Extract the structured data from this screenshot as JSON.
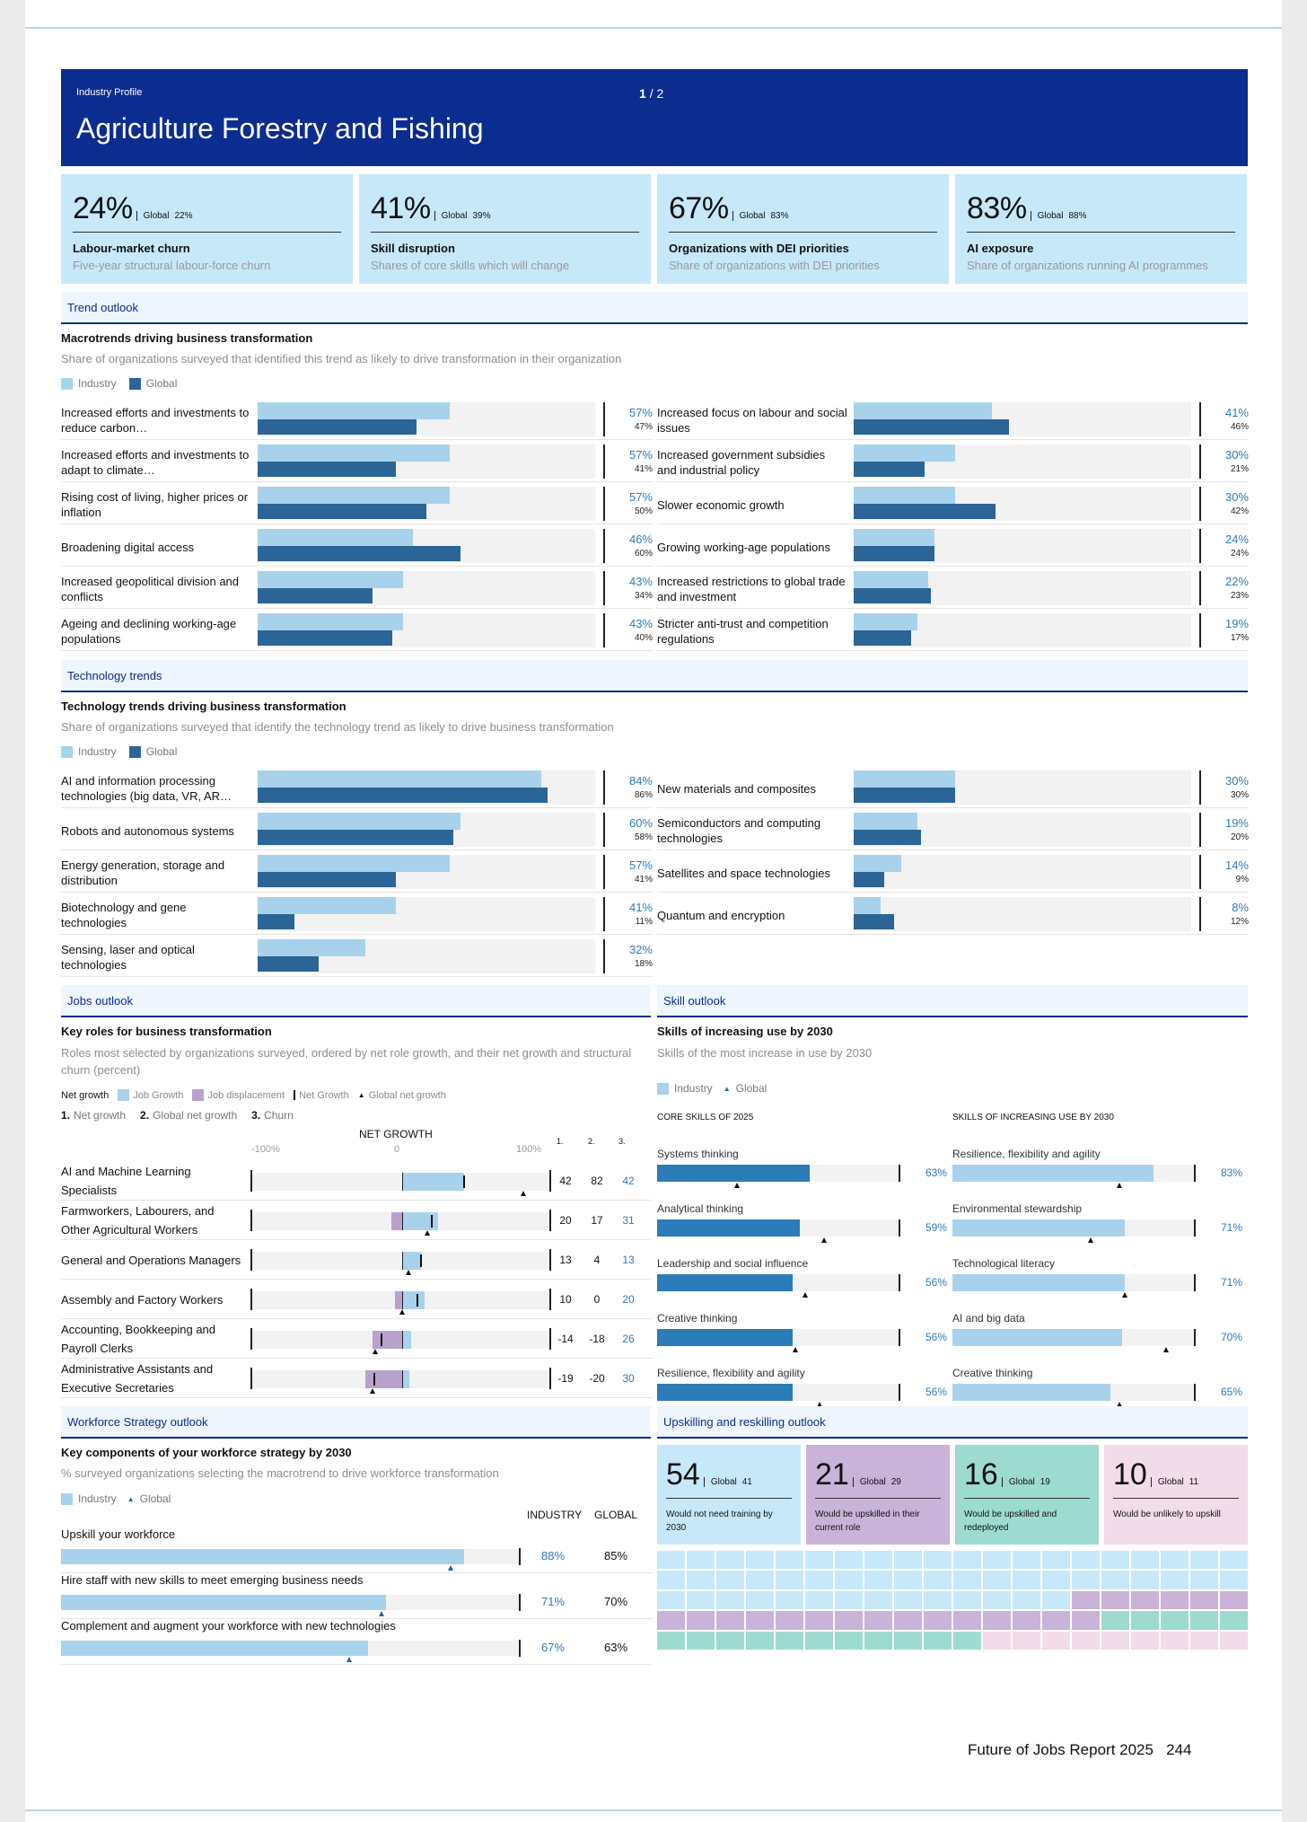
{
  "header": {
    "label": "Industry Profile",
    "page_current": "1",
    "page_sep": "/",
    "page_total": "2",
    "title": "Agriculture Forestry and Fishing"
  },
  "stats": [
    {
      "value": "24%",
      "global_label": "Global",
      "global_value": "22%",
      "title": "Labour-market churn",
      "subtitle": "Five-year structural labour-force churn"
    },
    {
      "value": "41%",
      "global_label": "Global",
      "global_value": "39%",
      "title": "Skill disruption",
      "subtitle": "Shares of core skills which will change"
    },
    {
      "value": "67%",
      "global_label": "Global",
      "global_value": "83%",
      "title": "Organizations with DEI priorities",
      "subtitle": "Share of organizations with DEI priorities"
    },
    {
      "value": "83%",
      "global_label": "Global",
      "global_value": "88%",
      "title": "AI exposure",
      "subtitle": "Share of organizations running AI programmes"
    }
  ],
  "trend": {
    "section": "Trend outlook",
    "title": "Macrotrends driving business transformation",
    "subtitle": "Share of organizations surveyed that identified this trend as likely to drive transformation in their organization",
    "legend_industry": "Industry",
    "legend_global": "Global",
    "left": [
      {
        "name": "Increased efforts and investments to reduce carbon…",
        "industry": 57,
        "global": 47,
        "i_label": "57%",
        "g_label": "47%"
      },
      {
        "name": "Increased efforts and investments to adapt to climate…",
        "industry": 57,
        "global": 41,
        "i_label": "57%",
        "g_label": "41%"
      },
      {
        "name": "Rising cost of living, higher prices or inflation",
        "industry": 57,
        "global": 50,
        "i_label": "57%",
        "g_label": "50%"
      },
      {
        "name": "Broadening digital access",
        "industry": 46,
        "global": 60,
        "i_label": "46%",
        "g_label": "60%"
      },
      {
        "name": "Increased geopolitical division and conflicts",
        "industry": 43,
        "global": 34,
        "i_label": "43%",
        "g_label": "34%"
      },
      {
        "name": "Ageing and declining working-age populations",
        "industry": 43,
        "global": 40,
        "i_label": "43%",
        "g_label": "40%"
      }
    ],
    "right": [
      {
        "name": "Increased focus on labour and social issues",
        "industry": 41,
        "global": 46,
        "i_label": "41%",
        "g_label": "46%"
      },
      {
        "name": "Increased government subsidies and industrial policy",
        "industry": 30,
        "global": 21,
        "i_label": "30%",
        "g_label": "21%"
      },
      {
        "name": "Slower economic growth",
        "industry": 30,
        "global": 42,
        "i_label": "30%",
        "g_label": "42%"
      },
      {
        "name": "Growing working-age populations",
        "industry": 24,
        "global": 24,
        "i_label": "24%",
        "g_label": "24%"
      },
      {
        "name": "Increased restrictions to global trade and investment",
        "industry": 22,
        "global": 23,
        "i_label": "22%",
        "g_label": "23%"
      },
      {
        "name": "Stricter anti-trust and competition regulations",
        "industry": 19,
        "global": 17,
        "i_label": "19%",
        "g_label": "17%"
      }
    ]
  },
  "tech": {
    "section": "Technology trends",
    "title": "Technology trends driving business transformation",
    "subtitle": "Share of organizations surveyed that identify the technology trend as likely to drive business transformation",
    "legend_industry": "Industry",
    "legend_global": "Global",
    "left": [
      {
        "name": "AI and information processing technologies (big data, VR, AR…",
        "industry": 84,
        "global": 86,
        "i_label": "84%",
        "g_label": "86%"
      },
      {
        "name": "Robots and autonomous systems",
        "industry": 60,
        "global": 58,
        "i_label": "60%",
        "g_label": "58%"
      },
      {
        "name": "Energy generation, storage and distribution",
        "industry": 57,
        "global": 41,
        "i_label": "57%",
        "g_label": "41%"
      },
      {
        "name": "Biotechnology and gene technologies",
        "industry": 41,
        "global": 11,
        "i_label": "41%",
        "g_label": "11%"
      },
      {
        "name": "Sensing, laser and optical technologies",
        "industry": 32,
        "global": 18,
        "i_label": "32%",
        "g_label": "18%"
      }
    ],
    "right": [
      {
        "name": "New materials and composites",
        "industry": 30,
        "global": 30,
        "i_label": "30%",
        "g_label": "30%"
      },
      {
        "name": "Semiconductors and computing technologies",
        "industry": 19,
        "global": 20,
        "i_label": "19%",
        "g_label": "20%"
      },
      {
        "name": "Satellites and space technologies",
        "industry": 14,
        "global": 9,
        "i_label": "14%",
        "g_label": "9%"
      },
      {
        "name": "Quantum and encryption",
        "industry": 8,
        "global": 12,
        "i_label": "8%",
        "g_label": "12%"
      }
    ]
  },
  "jobs": {
    "section": "Jobs outlook",
    "title": "Key roles for business transformation",
    "subtitle": "Roles most selected by organizations surveyed, ordered by net role growth, and their net growth and structural churn (percent)",
    "legend_net": "Net growth",
    "legend_growth": "Job Growth",
    "legend_displacement": "Job displacement",
    "legend_netgrowth": "Net Growth",
    "legend_global": "Global net growth",
    "col1": "1.",
    "col1_label": "Net growth",
    "col2": "2.",
    "col2_label": "Global net growth",
    "col3": "3.",
    "col3_label": "Churn",
    "axis_title": "NET GROWTH",
    "axis_min": "-100%",
    "axis_mid": "0",
    "axis_max": "100%",
    "roles": [
      {
        "name": "AI and Machine Learning Specialists",
        "growth": 42,
        "displacement": 0,
        "net": 42,
        "global": 82,
        "churn": 42,
        "n": "42",
        "g": "82",
        "c": "42"
      },
      {
        "name": "Farmworkers, Labourers, and Other Agricultural Workers",
        "growth": 24,
        "displacement": -7,
        "net": 20,
        "global": 17,
        "churn": 31,
        "n": "20",
        "g": "17",
        "c": "31"
      },
      {
        "name": "General and Operations Managers",
        "growth": 13,
        "displacement": 0,
        "net": 13,
        "global": 4,
        "churn": 13,
        "n": "13",
        "g": "4",
        "c": "13"
      },
      {
        "name": "Assembly and Factory Workers",
        "growth": 15,
        "displacement": -5,
        "net": 10,
        "global": 0,
        "churn": 20,
        "n": "10",
        "g": "0",
        "c": "20"
      },
      {
        "name": "Accounting, Bookkeeping and Payroll Clerks",
        "growth": 6,
        "displacement": -20,
        "net": -14,
        "global": -18,
        "churn": 26,
        "n": "-14",
        "g": "-18",
        "c": "26"
      },
      {
        "name": "Administrative Assistants and Executive Secretaries",
        "growth": 5,
        "displacement": -25,
        "net": -19,
        "global": -20,
        "churn": 30,
        "n": "-19",
        "g": "-20",
        "c": "30"
      }
    ]
  },
  "skills": {
    "section": "Skill outlook",
    "title": "Skills of increasing use by 2030",
    "subtitle": "Skills of the most increase in use by 2030",
    "legend_industry": "Industry",
    "legend_global": "Global",
    "core_header": "CORE SKILLS OF 2025",
    "inc_header": "SKILLS OF INCREASING USE BY 2030",
    "core": [
      {
        "name": "Systems thinking",
        "value": 63,
        "global": 33,
        "label": "63%"
      },
      {
        "name": "Analytical thinking",
        "value": 59,
        "global": 69,
        "label": "59%"
      },
      {
        "name": "Leadership and social influence",
        "value": 56,
        "global": 61,
        "label": "56%"
      },
      {
        "name": "Creative thinking",
        "value": 56,
        "global": 57,
        "label": "56%"
      },
      {
        "name": "Resilience, flexibility and agility",
        "value": 56,
        "global": 67,
        "label": "56%"
      }
    ],
    "increasing": [
      {
        "name": "Resilience, flexibility and agility",
        "value": 83,
        "global": 69,
        "label": "83%"
      },
      {
        "name": "Environmental stewardship",
        "value": 71,
        "global": 57,
        "label": "71%"
      },
      {
        "name": "Technological literacy",
        "value": 71,
        "global": 71,
        "label": "71%"
      },
      {
        "name": "AI and big data",
        "value": 70,
        "global": 88,
        "label": "70%"
      },
      {
        "name": "Creative thinking",
        "value": 65,
        "global": 69,
        "label": "65%"
      }
    ]
  },
  "workforce": {
    "section": "Workforce Strategy outlook",
    "title": "Key components of your workforce strategy by 2030",
    "subtitle": "% surveyed organizations selecting the macrotrend to drive workforce transformation",
    "legend_industry": "Industry",
    "legend_global": "Global",
    "col_industry": "INDUSTRY",
    "col_global": "GLOBAL",
    "items": [
      {
        "name": "Upskill your workforce",
        "industry": 88,
        "global": 85,
        "i_label": "88%",
        "g_label": "85%"
      },
      {
        "name": "Hire staff with new skills to meet emerging business needs",
        "industry": 71,
        "global": 70,
        "i_label": "71%",
        "g_label": "70%"
      },
      {
        "name": "Complement and augment your workforce with new technologies",
        "industry": 67,
        "global": 63,
        "i_label": "67%",
        "g_label": "63%"
      }
    ]
  },
  "upskill": {
    "section": "Upskilling and reskilling outlook",
    "boxes": [
      {
        "value": "54",
        "global_label": "Global",
        "global_value": "41",
        "text": "Would not need training by 2030",
        "color": "#c7e8f9",
        "count": 54
      },
      {
        "value": "21",
        "global_label": "Global",
        "global_value": "29",
        "text": "Would be upskilled in their current role",
        "color": "#c9b3d8",
        "count": 21
      },
      {
        "value": "16",
        "global_label": "Global",
        "global_value": "19",
        "text": "Would be upskilled and redeployed",
        "color": "#9ddbd1",
        "count": 16
      },
      {
        "value": "10",
        "global_label": "Global",
        "global_value": "11",
        "text": "Would be unlikely to upskill",
        "color": "#f2dcea",
        "count": 10
      }
    ]
  },
  "footer": {
    "title": "Future of Jobs Report 2025",
    "page": "244"
  },
  "colors": {
    "navy": "#0c2c8f",
    "industry": "#a8d2ec",
    "global": "#2b6496",
    "accent_text": "#2f7ab8",
    "stat_bg": "#c7e8f9"
  }
}
